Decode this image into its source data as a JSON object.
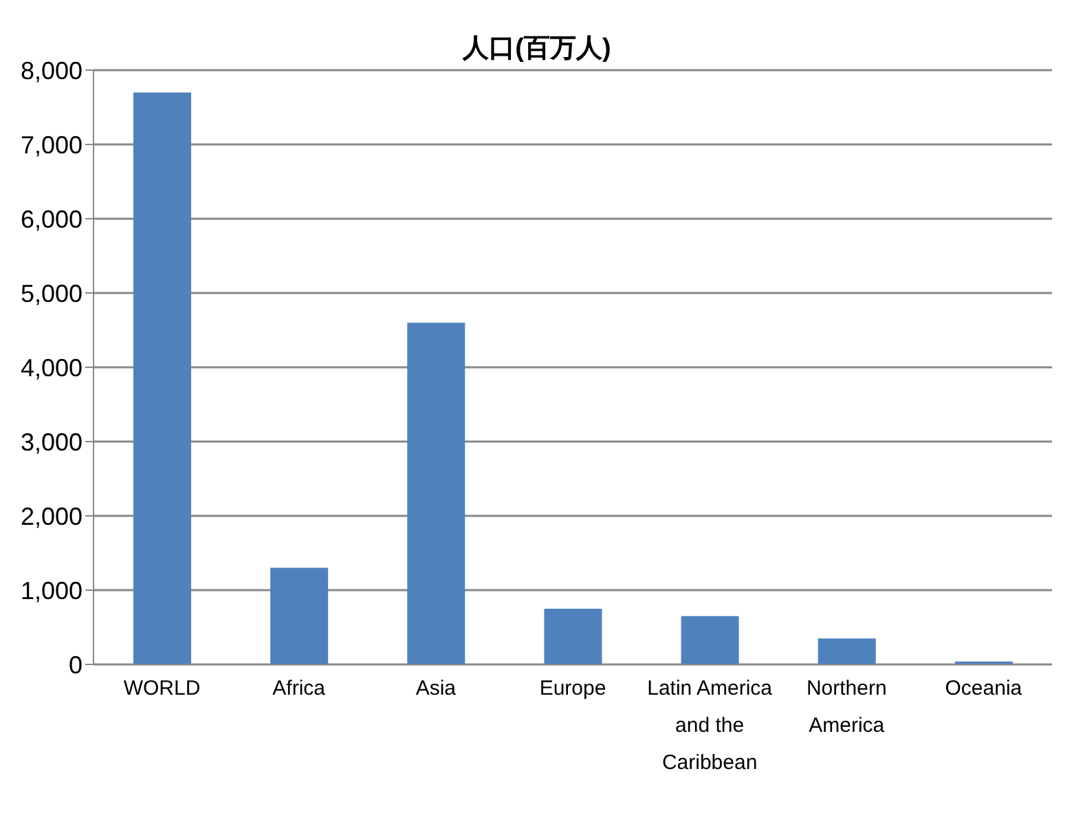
{
  "chart_data": {
    "type": "bar",
    "title": "人口(百万人)",
    "categories": [
      "WORLD",
      "Africa",
      "Asia",
      "Europe",
      "Latin America and the Caribbean",
      "Northern America",
      "Oceania"
    ],
    "values": [
      7700,
      1300,
      4600,
      750,
      650,
      350,
      40
    ],
    "color": "#4f81bd",
    "ylim": [
      0,
      8000
    ],
    "yticks": [
      {
        "value": 0,
        "label": "0"
      },
      {
        "value": 1000,
        "label": "1,000"
      },
      {
        "value": 2000,
        "label": "2,000"
      },
      {
        "value": 3000,
        "label": "3,000"
      },
      {
        "value": 4000,
        "label": "4,000"
      },
      {
        "value": 5000,
        "label": "5,000"
      },
      {
        "value": 6000,
        "label": "6,000"
      },
      {
        "value": 7000,
        "label": "7,000"
      },
      {
        "value": 8000,
        "label": "8,000"
      }
    ],
    "grid": "y",
    "legend": false
  }
}
